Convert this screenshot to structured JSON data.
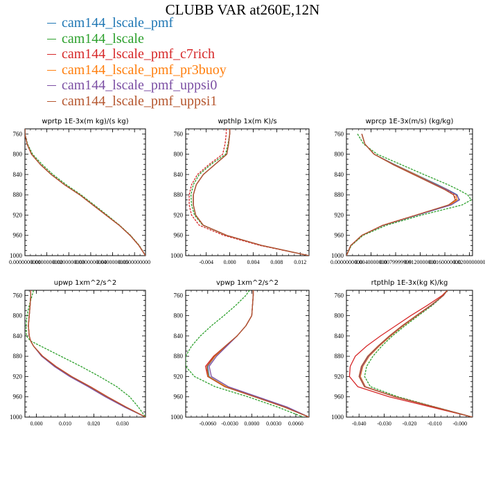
{
  "title": "CLUBB VAR at260E,12N",
  "series_legend": [
    {
      "name": "cam144_lscale_pmf",
      "color": "#1f77b4"
    },
    {
      "name": "cam144_lscale",
      "color": "#2ca02c"
    },
    {
      "name": "cam144_lscale_pmf_c7rich",
      "color": "#d62728"
    },
    {
      "name": "cam144_lscale_pmf_pr3buoy",
      "color": "#ff7f0e"
    },
    {
      "name": "cam144_lscale_pmf_uppsi0",
      "color": "#7b4ea3"
    },
    {
      "name": "cam144_lscale_pmf_uppsi1",
      "color": "#b5562e"
    }
  ],
  "chart_data": [
    {
      "type": "line",
      "title": "wprtp  1E-3x(m kg)/(s kg)",
      "xlim": [
        0.0,
        0.055
      ],
      "ylim": [
        1000,
        750
      ],
      "xticks": [
        0.0,
        0.01,
        0.02,
        0.03,
        0.04,
        0.05
      ],
      "xtick_labels": [
        "0.0000000000",
        "0.0100000000",
        "0.0200000000",
        "0.0300000000",
        "0.0400000000",
        "0.0500000000"
      ],
      "yticks": [
        760,
        800,
        840,
        880,
        920,
        960,
        1000
      ],
      "y": [
        750,
        760,
        780,
        800,
        820,
        840,
        860,
        880,
        900,
        920,
        940,
        960,
        980,
        1000
      ],
      "series": [
        {
          "values": [
            0.0,
            0.0,
            0.001,
            0.003,
            0.007,
            0.012,
            0.018,
            0.025,
            0.031,
            0.037,
            0.043,
            0.048,
            0.052,
            0.055
          ]
        },
        {
          "values": [
            0.0,
            0.0,
            0.0012,
            0.0035,
            0.0078,
            0.0128,
            0.0188,
            0.0256,
            0.0316,
            0.0375,
            0.0432,
            0.0482,
            0.0522,
            0.055
          ]
        },
        {
          "values": [
            0.0,
            0.0,
            0.001,
            0.003,
            0.007,
            0.012,
            0.018,
            0.025,
            0.031,
            0.037,
            0.043,
            0.048,
            0.052,
            0.055
          ]
        },
        {
          "values": [
            0.0,
            0.0,
            0.001,
            0.003,
            0.007,
            0.012,
            0.018,
            0.025,
            0.031,
            0.037,
            0.043,
            0.048,
            0.052,
            0.055
          ]
        },
        {
          "values": [
            0.0,
            0.0,
            0.001,
            0.003,
            0.007,
            0.012,
            0.018,
            0.025,
            0.031,
            0.037,
            0.043,
            0.048,
            0.052,
            0.055
          ]
        },
        {
          "values": [
            0.0,
            0.0,
            0.001,
            0.003,
            0.007,
            0.012,
            0.018,
            0.025,
            0.031,
            0.037,
            0.043,
            0.048,
            0.052,
            0.055
          ]
        }
      ]
    },
    {
      "type": "line",
      "title": "wpthlp  1x(m K)/s",
      "xlim": [
        -0.0075,
        0.0135
      ],
      "ylim": [
        1000,
        750
      ],
      "xticks": [
        -0.004,
        0.0,
        0.004,
        0.008,
        0.012
      ],
      "xtick_labels": [
        "-0.004",
        "0.000",
        "0.004",
        "0.008",
        "0.012"
      ],
      "yticks": [
        760,
        800,
        840,
        880,
        920,
        960,
        1000
      ],
      "y": [
        750,
        760,
        780,
        800,
        820,
        840,
        860,
        880,
        900,
        920,
        940,
        960,
        980,
        1000
      ],
      "series": [
        {
          "values": [
            0.0,
            0.0,
            -0.0002,
            -0.0005,
            -0.0025,
            -0.0045,
            -0.0057,
            -0.0062,
            -0.0062,
            -0.0058,
            -0.0045,
            -0.0005,
            0.0055,
            0.0135
          ]
        },
        {
          "values": [
            0.0,
            0.0,
            -0.0003,
            -0.0007,
            -0.0032,
            -0.0052,
            -0.0062,
            -0.0066,
            -0.0065,
            -0.006,
            -0.0046,
            -0.0006,
            0.0055,
            0.0135
          ]
        },
        {
          "values": [
            -0.0006,
            -0.0006,
            -0.0008,
            -0.0012,
            -0.0035,
            -0.0055,
            -0.0065,
            -0.0069,
            -0.0069,
            -0.0065,
            -0.0052,
            -0.001,
            0.0052,
            0.0135
          ]
        },
        {
          "values": [
            0.0,
            0.0,
            -0.0002,
            -0.0005,
            -0.0025,
            -0.0045,
            -0.0057,
            -0.0062,
            -0.0062,
            -0.0058,
            -0.0045,
            -0.0005,
            0.0055,
            0.0135
          ]
        },
        {
          "values": [
            0.0,
            0.0,
            -0.0002,
            -0.0005,
            -0.0025,
            -0.0045,
            -0.0057,
            -0.0062,
            -0.0062,
            -0.0058,
            -0.0045,
            -0.0005,
            0.0055,
            0.0135
          ]
        },
        {
          "values": [
            0.0,
            0.0,
            -0.0002,
            -0.0005,
            -0.0025,
            -0.0045,
            -0.0057,
            -0.0062,
            -0.0062,
            -0.0058,
            -0.0045,
            -0.0005,
            0.0055,
            0.0135
          ]
        }
      ]
    },
    {
      "type": "line",
      "title": "wprcp  1E-3x(m/s) (kg/kg)",
      "xlim": [
        0.0,
        0.0205
      ],
      "ylim": [
        1000,
        750
      ],
      "xticks": [
        0.0,
        0.004,
        0.008,
        0.012,
        0.016,
        0.02
      ],
      "xtick_labels": [
        "0.0000000000",
        "0.0040000000",
        "0.0079999999",
        "0.0120000000",
        "0.0160000000",
        "0.0200000000"
      ],
      "yticks": [
        760,
        800,
        840,
        880,
        920,
        960,
        1000
      ],
      "y": [
        760,
        780,
        800,
        820,
        840,
        860,
        870,
        880,
        890,
        900,
        920,
        940,
        960,
        980,
        1000
      ],
      "series": [
        {
          "values": [
            0.0025,
            0.003,
            0.0045,
            0.0078,
            0.0113,
            0.0148,
            0.0165,
            0.018,
            0.0183,
            0.017,
            0.0115,
            0.006,
            0.0025,
            0.0007,
            0.0
          ]
        },
        {
          "values": [
            0.0018,
            0.0028,
            0.005,
            0.0088,
            0.0126,
            0.0165,
            0.0182,
            0.0197,
            0.0203,
            0.0188,
            0.0122,
            0.0065,
            0.0027,
            0.0008,
            0.0
          ]
        },
        {
          "values": [
            0.0025,
            0.003,
            0.0045,
            0.0076,
            0.011,
            0.0145,
            0.0162,
            0.0175,
            0.0178,
            0.0167,
            0.0113,
            0.0059,
            0.0025,
            0.0007,
            0.0
          ]
        },
        {
          "values": [
            0.0025,
            0.003,
            0.0045,
            0.0077,
            0.0112,
            0.0146,
            0.0164,
            0.0178,
            0.018,
            0.0168,
            0.0114,
            0.006,
            0.0025,
            0.0007,
            0.0
          ]
        },
        {
          "values": [
            0.0025,
            0.003,
            0.0045,
            0.0076,
            0.011,
            0.0145,
            0.0163,
            0.0179,
            0.0184,
            0.017,
            0.0114,
            0.006,
            0.0025,
            0.0007,
            0.0
          ]
        },
        {
          "values": [
            0.0025,
            0.003,
            0.0045,
            0.0075,
            0.0109,
            0.0143,
            0.016,
            0.0174,
            0.0177,
            0.0166,
            0.0113,
            0.0059,
            0.0025,
            0.0007,
            0.0
          ]
        }
      ]
    },
    {
      "type": "line",
      "title": "upwp  1xm^2/s^2",
      "xlim": [
        -0.004,
        0.038
      ],
      "ylim": [
        1000,
        750
      ],
      "xticks": [
        0.0,
        0.01,
        0.02,
        0.03
      ],
      "xtick_labels": [
        "0.000",
        "0.010",
        "0.020",
        "0.030"
      ],
      "yticks": [
        760,
        800,
        840,
        880,
        920,
        960,
        1000
      ],
      "y": [
        750,
        760,
        780,
        800,
        820,
        840,
        850,
        860,
        880,
        900,
        920,
        940,
        960,
        980,
        1000
      ],
      "series": [
        {
          "values": [
            -0.002,
            -0.002,
            -0.0022,
            -0.0025,
            -0.0028,
            -0.0025,
            -0.002,
            -0.001,
            0.002,
            0.0065,
            0.012,
            0.0185,
            0.0245,
            0.031,
            0.038
          ]
        },
        {
          "values": [
            -0.001,
            -0.0015,
            -0.0025,
            -0.0033,
            -0.0036,
            -0.0035,
            -0.002,
            0.0015,
            0.0085,
            0.0155,
            0.022,
            0.028,
            0.0325,
            0.0355,
            0.038
          ]
        },
        {
          "values": [
            -0.002,
            -0.002,
            -0.0022,
            -0.0025,
            -0.0028,
            -0.0025,
            -0.002,
            -0.001,
            0.0022,
            0.0068,
            0.0123,
            0.0188,
            0.0248,
            0.0312,
            0.038
          ]
        },
        {
          "values": [
            -0.002,
            -0.002,
            -0.0022,
            -0.0025,
            -0.0028,
            -0.0025,
            -0.002,
            -0.001,
            0.002,
            0.0065,
            0.012,
            0.0185,
            0.0245,
            0.031,
            0.038
          ]
        },
        {
          "values": [
            -0.002,
            -0.002,
            -0.0022,
            -0.0025,
            -0.0028,
            -0.0025,
            -0.002,
            -0.001,
            0.0018,
            0.0062,
            0.0116,
            0.018,
            0.024,
            0.0306,
            0.038
          ]
        },
        {
          "values": [
            -0.002,
            -0.002,
            -0.0022,
            -0.0025,
            -0.0028,
            -0.0025,
            -0.002,
            -0.001,
            0.0021,
            0.0067,
            0.0122,
            0.0187,
            0.0247,
            0.0311,
            0.038
          ]
        }
      ]
    },
    {
      "type": "line",
      "title": "vpwp  1xm^2/s^2",
      "xlim": [
        -0.009,
        0.0078
      ],
      "ylim": [
        1000,
        750
      ],
      "xticks": [
        -0.006,
        -0.003,
        0.0,
        0.003,
        0.006
      ],
      "xtick_labels": [
        "-0.0060",
        "-0.0030",
        "0.0000",
        "0.0030",
        "0.0060"
      ],
      "yticks": [
        760,
        800,
        840,
        880,
        920,
        960,
        1000
      ],
      "y": [
        750,
        760,
        780,
        800,
        820,
        840,
        860,
        880,
        900,
        920,
        940,
        960,
        980,
        1000
      ],
      "series": [
        {
          "values": [
            0.0002,
            0.0002,
            0.0001,
            0.0,
            -0.0008,
            -0.002,
            -0.0035,
            -0.005,
            -0.006,
            -0.0058,
            -0.0035,
            0.0005,
            0.0045,
            0.0078
          ]
        },
        {
          "values": [
            -0.0003,
            -0.0008,
            -0.0022,
            -0.0038,
            -0.0055,
            -0.007,
            -0.0082,
            -0.009,
            -0.009,
            -0.0078,
            -0.005,
            -0.0005,
            0.0035,
            0.007
          ]
        },
        {
          "values": [
            0.0002,
            0.0002,
            0.0001,
            0.0,
            -0.0008,
            -0.002,
            -0.0036,
            -0.0052,
            -0.0063,
            -0.006,
            -0.0036,
            0.0004,
            0.0044,
            0.0078
          ]
        },
        {
          "values": [
            0.0002,
            0.0002,
            0.0001,
            0.0,
            -0.0008,
            -0.002,
            -0.0035,
            -0.005,
            -0.0061,
            -0.0059,
            -0.0035,
            0.0005,
            0.0045,
            0.0078
          ]
        },
        {
          "values": [
            0.0002,
            0.0002,
            0.0001,
            0.0,
            -0.0008,
            -0.002,
            -0.0034,
            -0.0048,
            -0.0058,
            -0.0055,
            -0.0032,
            0.0008,
            0.0048,
            0.0078
          ]
        },
        {
          "values": [
            0.0002,
            0.0002,
            0.0001,
            0.0,
            -0.0008,
            -0.002,
            -0.0036,
            -0.0051,
            -0.0061,
            -0.006,
            -0.0037,
            0.0004,
            0.0044,
            0.0078
          ]
        }
      ]
    },
    {
      "type": "line",
      "title": "rtpthlp  1E-3x(kg K)/kg",
      "xlim": [
        -0.045,
        0.005
      ],
      "ylim": [
        1000,
        750
      ],
      "xticks": [
        -0.04,
        -0.03,
        -0.02,
        -0.01,
        0.0
      ],
      "xtick_labels": [
        "-0.040",
        "-0.030",
        "-0.020",
        "-0.010",
        "-0.000"
      ],
      "yticks": [
        760,
        800,
        840,
        880,
        920,
        960,
        1000
      ],
      "y": [
        750,
        760,
        780,
        800,
        820,
        840,
        860,
        880,
        900,
        920,
        940,
        960,
        980,
        1000
      ],
      "series": [
        {
          "values": [
            -0.005,
            -0.0065,
            -0.0115,
            -0.017,
            -0.0225,
            -0.0275,
            -0.032,
            -0.036,
            -0.0385,
            -0.0395,
            -0.0375,
            -0.0255,
            -0.01,
            0.005
          ]
        },
        {
          "values": [
            -0.005,
            -0.0065,
            -0.011,
            -0.0165,
            -0.0218,
            -0.0268,
            -0.031,
            -0.0345,
            -0.037,
            -0.0378,
            -0.0355,
            -0.0245,
            -0.0098,
            0.005
          ]
        },
        {
          "values": [
            -0.005,
            -0.007,
            -0.013,
            -0.0195,
            -0.0255,
            -0.0315,
            -0.037,
            -0.0415,
            -0.0435,
            -0.0438,
            -0.0405,
            -0.028,
            -0.0115,
            0.005
          ]
        },
        {
          "values": [
            -0.005,
            -0.0065,
            -0.0115,
            -0.017,
            -0.0225,
            -0.0275,
            -0.032,
            -0.036,
            -0.0385,
            -0.0395,
            -0.0375,
            -0.0255,
            -0.01,
            0.005
          ]
        },
        {
          "values": [
            -0.005,
            -0.0065,
            -0.0115,
            -0.0172,
            -0.0228,
            -0.0278,
            -0.0323,
            -0.0363,
            -0.0388,
            -0.0398,
            -0.0377,
            -0.0256,
            -0.0101,
            0.005
          ]
        },
        {
          "values": [
            -0.005,
            -0.0066,
            -0.0117,
            -0.0174,
            -0.023,
            -0.028,
            -0.0325,
            -0.0366,
            -0.0391,
            -0.04,
            -0.0379,
            -0.0257,
            -0.0102,
            0.005
          ]
        }
      ]
    }
  ]
}
